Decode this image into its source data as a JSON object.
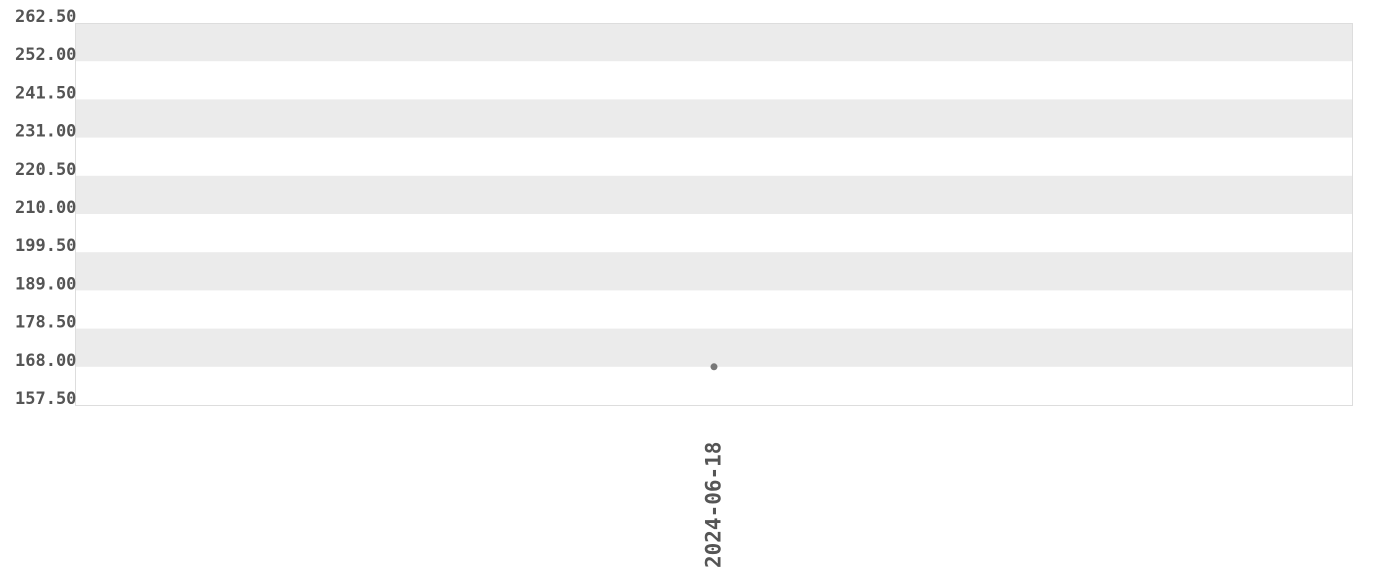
{
  "chart_data": {
    "type": "scatter",
    "title": "",
    "xlabel": "",
    "ylabel": "",
    "x_ticks": [
      "2024-06-18"
    ],
    "y_ticks": [
      "262.50",
      "252.00",
      "241.50",
      "231.00",
      "220.50",
      "210.00",
      "199.50",
      "189.00",
      "178.50",
      "168.00",
      "157.50"
    ],
    "ylim": [
      157.5,
      262.5
    ],
    "grid": "alternating horizontal bands",
    "points": [
      {
        "x": "2024-06-18",
        "y": 168.0
      }
    ],
    "colors": {
      "band": "#ebebeb",
      "point": "#777777",
      "text": "#555555",
      "frame": "#dddddd"
    }
  }
}
